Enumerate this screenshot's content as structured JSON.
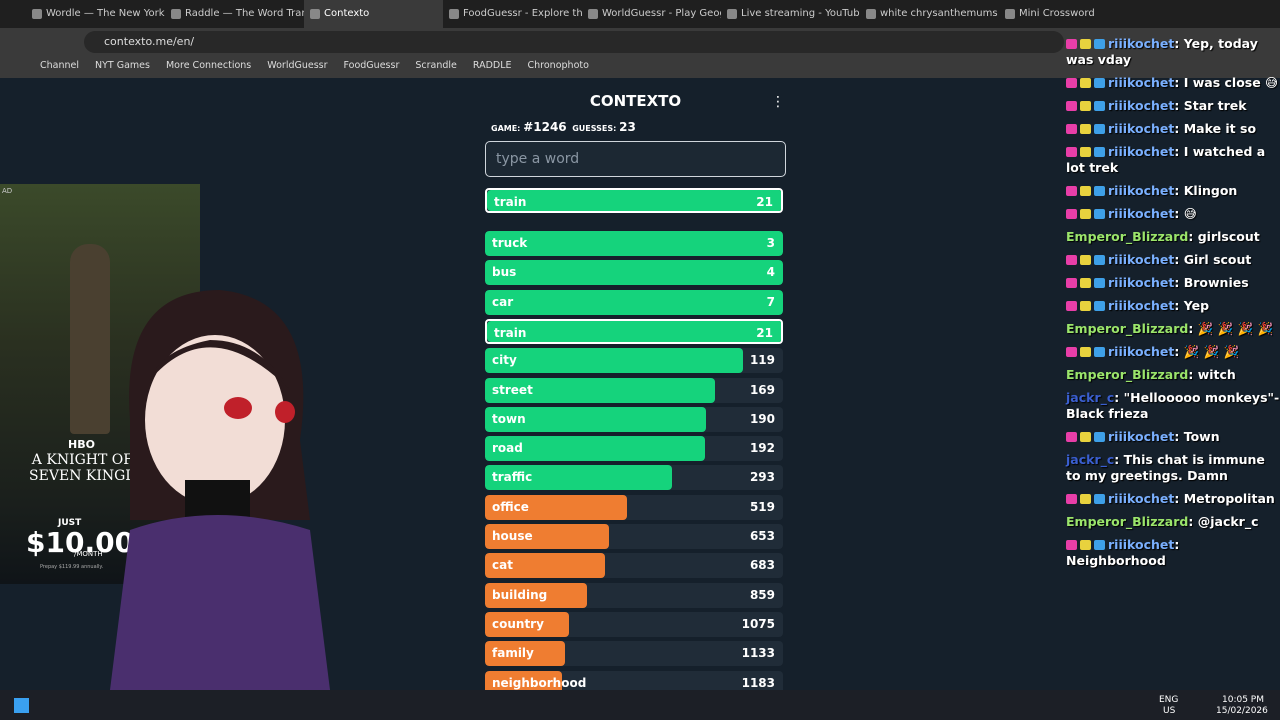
{
  "browser": {
    "tabs": [
      "Wordle — The New York",
      "Raddle — The Word Tran",
      "Contexto",
      "FoodGuessr - Explore the",
      "WorldGuessr - Play Geog",
      "Live streaming - YouTube",
      "white chrysanthemums -",
      "Mini Crossword"
    ],
    "active_tab": 2,
    "url": "contexto.me/en/",
    "bookmarks": [
      "Channel",
      "NYT Games",
      "More Connections",
      "WorldGuessr",
      "FoodGuessr",
      "Scrandle",
      "RADDLE",
      "Chronophoto"
    ]
  },
  "game": {
    "title": "CONTEXTO",
    "game_label": "GAME:",
    "game_number": "#1246",
    "guesses_label": "GUESSES:",
    "guesses_count": "23",
    "placeholder": "type a word",
    "last_guess": {
      "word": "train",
      "rank": 21
    },
    "guesses": [
      {
        "word": "truck",
        "rank": 3
      },
      {
        "word": "bus",
        "rank": 4
      },
      {
        "word": "car",
        "rank": 7
      },
      {
        "word": "train",
        "rank": 21
      },
      {
        "word": "city",
        "rank": 119
      },
      {
        "word": "street",
        "rank": 169
      },
      {
        "word": "town",
        "rank": 190
      },
      {
        "word": "road",
        "rank": 192
      },
      {
        "word": "traffic",
        "rank": 293
      },
      {
        "word": "office",
        "rank": 519
      },
      {
        "word": "house",
        "rank": 653
      },
      {
        "word": "cat",
        "rank": 683
      },
      {
        "word": "building",
        "rank": 859
      },
      {
        "word": "country",
        "rank": 1075
      },
      {
        "word": "family",
        "rank": 1133
      },
      {
        "word": "neighborhood",
        "rank": 1183
      }
    ]
  },
  "ad": {
    "tag": "AD",
    "brand": "HBO",
    "show": "A KNIGHT OF THE SEVEN KINGDOMS",
    "just": "JUST",
    "price": "$10.00",
    "per": "/MONTH",
    "fine_print": "Prepay $119.99 annually."
  },
  "chat": [
    {
      "user": "riiikochet",
      "text": "Yep, today was vday"
    },
    {
      "user": "riiikochet",
      "text": "I was close 😅"
    },
    {
      "user": "riiikochet",
      "text": "Star trek"
    },
    {
      "user": "riiikochet",
      "text": "Make it so"
    },
    {
      "user": "riiikochet",
      "text": "I watched a lot trek"
    },
    {
      "user": "riiikochet",
      "text": "Klingon"
    },
    {
      "user": "riiikochet",
      "text": "😅"
    },
    {
      "user": "Emperor_Blizzard",
      "text": "girlscout"
    },
    {
      "user": "riiikochet",
      "text": "Girl scout"
    },
    {
      "user": "riiikochet",
      "text": "Brownies"
    },
    {
      "user": "riiikochet",
      "text": "Yep"
    },
    {
      "user": "Emperor_Blizzard",
      "text": "🎉 🎉 🎉 🎉"
    },
    {
      "user": "riiikochet",
      "text": "🎉 🎉 🎉"
    },
    {
      "user": "Emperor_Blizzard",
      "text": "witch"
    },
    {
      "user": "jackr_c",
      "text": "\"Hellooooo monkeys\"-Black frieza"
    },
    {
      "user": "riiikochet",
      "text": "Town"
    },
    {
      "user": "jackr_c",
      "text": "This chat is immune to my greetings. Damn"
    },
    {
      "user": "riiikochet",
      "text": "Metropolitan"
    },
    {
      "user": "Emperor_Blizzard",
      "text": "@jackr_c"
    },
    {
      "user": "riiikochet",
      "text": "Neighborhood"
    }
  ],
  "taskbar": {
    "lang": "ENG",
    "region": "US",
    "time": "10:05 PM",
    "date": "15/02/2026"
  }
}
